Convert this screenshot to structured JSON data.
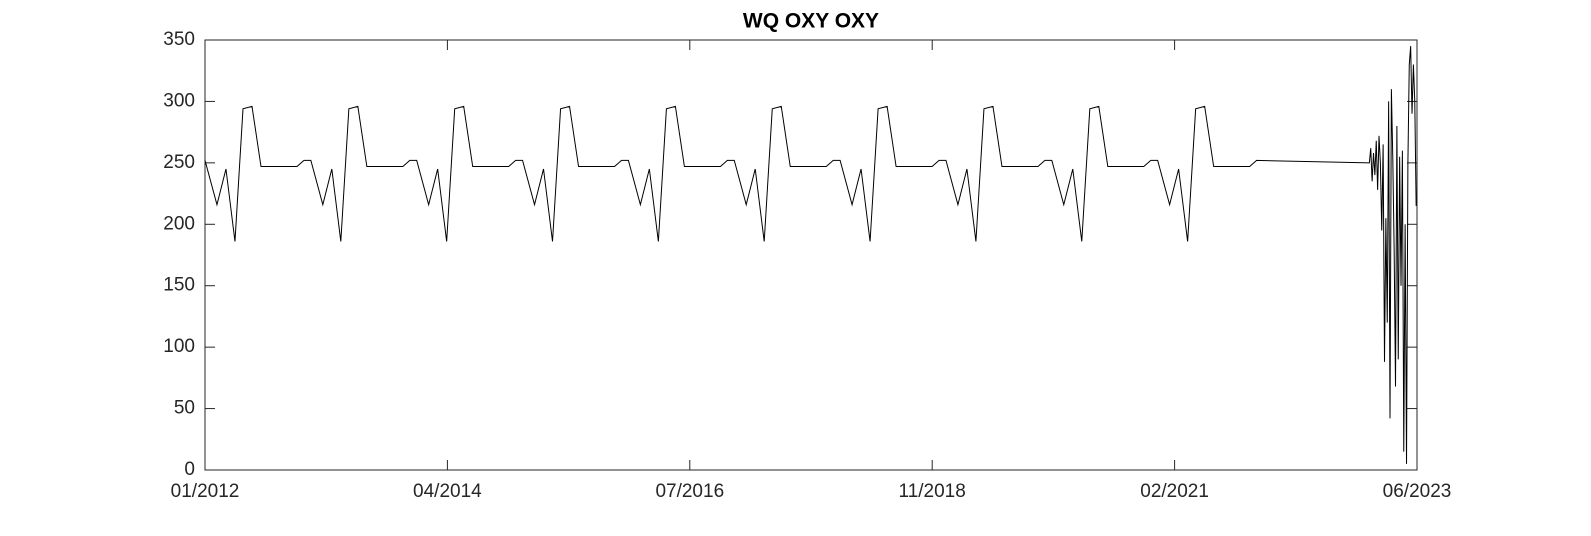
{
  "chart_data": {
    "type": "line",
    "title": "WQ OXY OXY",
    "color": "#000000",
    "x": [
      2012.0,
      2012.113,
      2012.198,
      2012.283,
      2012.359,
      2012.444,
      2012.529,
      2012.869,
      2012.935,
      2013.0,
      2013.113,
      2013.198,
      2013.283,
      2013.359,
      2013.444,
      2013.529,
      2013.869,
      2013.935,
      2014.0,
      2014.113,
      2014.198,
      2014.283,
      2014.359,
      2014.444,
      2014.529,
      2014.869,
      2014.935,
      2015.0,
      2015.113,
      2015.198,
      2015.283,
      2015.359,
      2015.444,
      2015.529,
      2015.869,
      2015.935,
      2016.0,
      2016.113,
      2016.198,
      2016.283,
      2016.359,
      2016.444,
      2016.529,
      2016.869,
      2016.935,
      2017.0,
      2017.113,
      2017.198,
      2017.283,
      2017.359,
      2017.444,
      2017.529,
      2017.869,
      2017.935,
      2018.0,
      2018.113,
      2018.198,
      2018.283,
      2018.359,
      2018.444,
      2018.529,
      2018.869,
      2018.935,
      2019.0,
      2019.113,
      2019.198,
      2019.283,
      2019.359,
      2019.444,
      2019.529,
      2019.869,
      2019.935,
      2020.0,
      2020.113,
      2020.198,
      2020.283,
      2020.359,
      2020.444,
      2020.529,
      2020.869,
      2020.935,
      2021.0,
      2021.113,
      2021.198,
      2021.283,
      2021.359,
      2021.444,
      2021.529,
      2021.869,
      2021.935,
      2023.0,
      2023.013,
      2023.026,
      2023.039,
      2023.052,
      2023.065,
      2023.078,
      2023.091,
      2023.104,
      2023.117,
      2023.13,
      2023.143,
      2023.156,
      2023.169,
      2023.182,
      2023.195,
      2023.208,
      2023.221,
      2023.234,
      2023.247,
      2023.26,
      2023.273,
      2023.286,
      2023.299,
      2023.312,
      2023.325,
      2023.338,
      2023.351,
      2023.364,
      2023.377,
      2023.39,
      2023.403,
      2023.416,
      2023.429,
      2023.442
    ],
    "values": [
      252,
      216,
      245,
      186,
      294,
      296,
      247,
      247,
      252,
      252,
      216,
      245,
      186,
      294,
      296,
      247,
      247,
      252,
      252,
      216,
      245,
      186,
      294,
      296,
      247,
      247,
      252,
      252,
      216,
      245,
      186,
      294,
      296,
      247,
      247,
      252,
      252,
      216,
      245,
      186,
      294,
      296,
      247,
      247,
      252,
      252,
      216,
      245,
      186,
      294,
      296,
      247,
      247,
      252,
      252,
      216,
      245,
      186,
      294,
      296,
      247,
      247,
      252,
      252,
      216,
      245,
      186,
      294,
      296,
      247,
      247,
      252,
      252,
      216,
      245,
      186,
      294,
      296,
      247,
      247,
      252,
      252,
      216,
      245,
      186,
      294,
      296,
      247,
      247,
      252,
      250,
      262,
      235,
      258,
      240,
      268,
      228,
      272,
      250,
      195,
      265,
      88,
      205,
      120,
      300,
      42,
      310,
      255,
      180,
      68,
      280,
      90,
      255,
      150,
      260,
      15,
      200,
      5,
      250,
      330,
      345,
      290,
      330,
      300,
      215
    ],
    "xlim": [
      2012.0,
      2023.45
    ],
    "xticks": [
      {
        "value": 2012.0,
        "label": "01/2012"
      },
      {
        "value": 2014.29,
        "label": "04/2014"
      },
      {
        "value": 2016.58,
        "label": "07/2016"
      },
      {
        "value": 2018.87,
        "label": "11/2018"
      },
      {
        "value": 2021.16,
        "label": "02/2021"
      },
      {
        "value": 2023.45,
        "label": "06/2023"
      }
    ],
    "ylim": [
      0,
      350
    ],
    "yticks": [
      0,
      50,
      100,
      150,
      200,
      250,
      300,
      350
    ]
  }
}
